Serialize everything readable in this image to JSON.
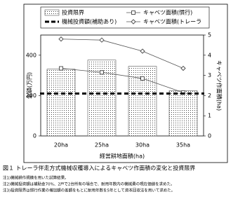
{
  "chart_data": {
    "type": "bar",
    "categories": [
      "20ha",
      "25ha",
      "30ha",
      "35ha"
    ],
    "xlabel": "経営耕地面積(ha)",
    "ylabel": "金額(万円)",
    "y2label": "キャベツ作面積(ha)",
    "ylim": [
      0,
      500
    ],
    "yticks": [
      0,
      200,
      400
    ],
    "y2lim": [
      0,
      5
    ],
    "y2ticks": [
      0,
      1,
      2,
      3,
      4,
      5
    ],
    "series": [
      {
        "name": "投資限界",
        "type": "bar",
        "color": "#555555",
        "values": [
          331,
          376,
          345,
          224
        ]
      },
      {
        "name": "キャベツ面積(慣行)",
        "type": "line",
        "marker": "square",
        "axis": "y2",
        "color": "#555555",
        "values": [
          3.35,
          3.15,
          2.85,
          2.15
        ]
      },
      {
        "name": "機械投資額(補助あり)",
        "type": "dashed",
        "color": "#000000",
        "values": [
          210,
          210,
          210,
          210
        ]
      },
      {
        "name": "キャベツ面積(トレーラ",
        "type": "line",
        "marker": "diamond",
        "axis": "y2",
        "color": "#555555",
        "values": [
          4.8,
          4.75,
          4.2,
          3.35
        ]
      }
    ],
    "caption": "図１ トレーラ伴走方式機械収穫導入によるキャベツ作面積の変化と投資限界",
    "notes": [
      "注1)機械耕作規模を用いた試算結果。",
      "注2)機械投資額は補助金70%、2戸で2台所有の場合で、耐用年数内の機械費の現在価値を求めた。",
      "注3)投資限界は慣行作業の増加額の差額をもとに耐用年数を5年として資本回収法を用いて求めた。"
    ]
  }
}
